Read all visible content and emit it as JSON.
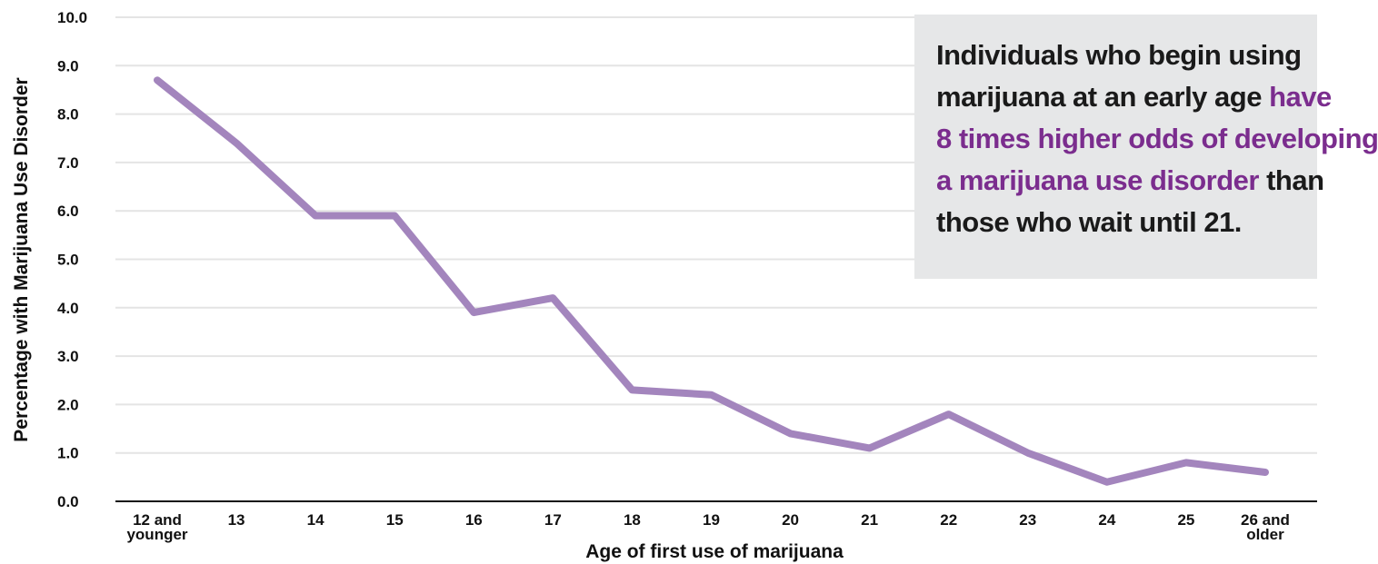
{
  "chart_data": {
    "type": "line",
    "ylabel": "Percentage with Marijuana Use Disorder",
    "xlabel": "Age of first use of marijuana",
    "ylim": [
      0,
      10
    ],
    "yticks": [
      "0.0",
      "1.0",
      "2.0",
      "3.0",
      "4.0",
      "5.0",
      "6.0",
      "7.0",
      "8.0",
      "9.0",
      "10.0"
    ],
    "categories": [
      [
        "12 and",
        "younger"
      ],
      [
        "13"
      ],
      [
        "14"
      ],
      [
        "15"
      ],
      [
        "16"
      ],
      [
        "17"
      ],
      [
        "18"
      ],
      [
        "19"
      ],
      [
        "20"
      ],
      [
        "21"
      ],
      [
        "22"
      ],
      [
        "23"
      ],
      [
        "24"
      ],
      [
        "25"
      ],
      [
        "26 and",
        "older"
      ]
    ],
    "values": [
      8.7,
      7.4,
      5.9,
      5.9,
      3.9,
      4.2,
      2.3,
      2.2,
      1.4,
      1.1,
      1.8,
      1.0,
      0.4,
      0.8,
      0.6
    ],
    "grid": true,
    "line_color": "#a385bd",
    "gridline_color": "#e4e4e4"
  },
  "callout": {
    "line1": "Individuals who begin using",
    "line2_plain": "marijuana at an early age ",
    "line2_highlight": "have",
    "line3_highlight": "8 times higher odds of developing",
    "line4_highlight": "a marijuana use disorder",
    "line4_plain": " than",
    "line5": "those who wait until 21.",
    "highlight_color": "#7b2d8e",
    "background_color": "#e6e7e8"
  }
}
